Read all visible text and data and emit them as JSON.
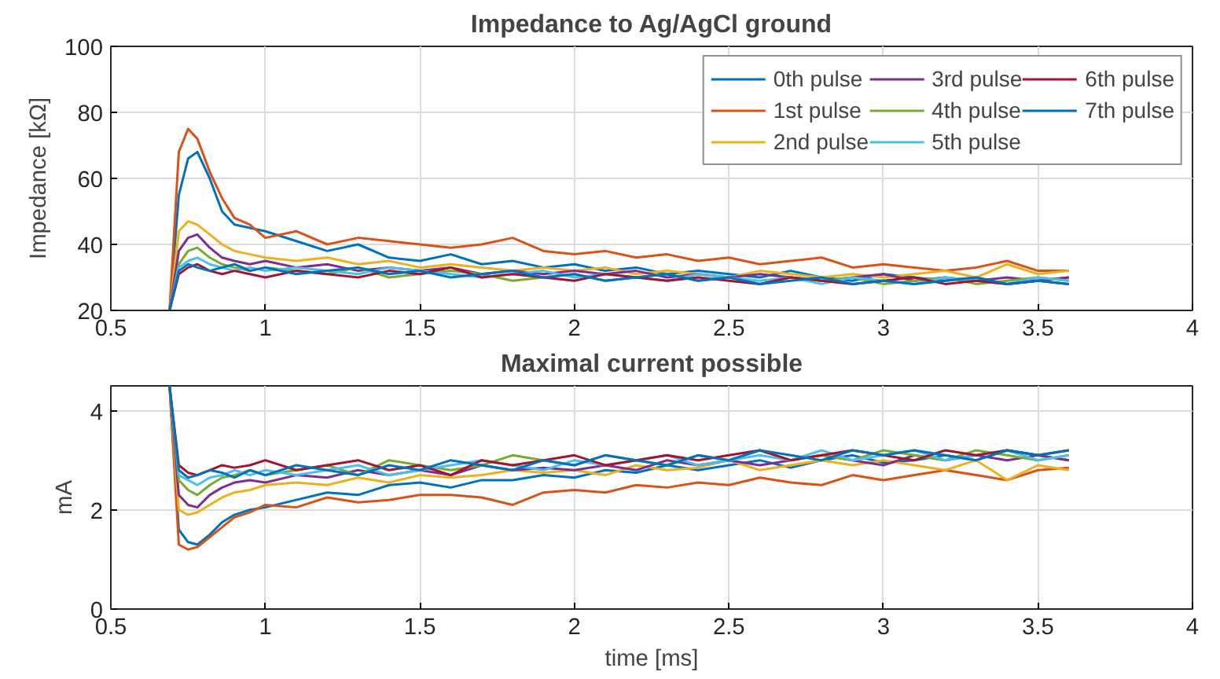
{
  "chart_data": [
    {
      "type": "line",
      "title": "Impedance to Ag/AgCl ground",
      "ylabel": "Impedance [kΩ]",
      "xlim": [
        0.5,
        4
      ],
      "xticks": [
        0.5,
        1,
        1.5,
        2,
        2.5,
        3,
        3.5,
        4
      ],
      "ylim": [
        20,
        100
      ],
      "yticks": [
        20,
        40,
        60,
        80,
        100
      ],
      "grid": true,
      "legend": "top right",
      "line_style": "solid",
      "marker": "none",
      "x": [
        0.69,
        0.72,
        0.75,
        0.78,
        0.82,
        0.86,
        0.9,
        0.95,
        1.0,
        1.1,
        1.2,
        1.3,
        1.4,
        1.5,
        1.6,
        1.7,
        1.8,
        1.9,
        2.0,
        2.1,
        2.2,
        2.3,
        2.4,
        2.5,
        2.6,
        2.7,
        2.8,
        2.9,
        3.0,
        3.1,
        3.2,
        3.3,
        3.4,
        3.5,
        3.6
      ],
      "series": [
        {
          "name": "0th pulse",
          "color": "#0072bd",
          "values": [
            20,
            55,
            66,
            68,
            60,
            50,
            46,
            45,
            44,
            41,
            38,
            40,
            36,
            35,
            37,
            34,
            35,
            33,
            34,
            32,
            33,
            31,
            32,
            31,
            30,
            32,
            30,
            29,
            31,
            30,
            29,
            30,
            28,
            29,
            30
          ]
        },
        {
          "name": "1st pulse",
          "color": "#d95319",
          "values": [
            20,
            68,
            75,
            72,
            62,
            54,
            48,
            46,
            42,
            44,
            40,
            42,
            41,
            40,
            39,
            40,
            42,
            38,
            37,
            38,
            36,
            37,
            35,
            36,
            34,
            35,
            36,
            33,
            34,
            33,
            32,
            33,
            35,
            32,
            32
          ]
        },
        {
          "name": "2nd pulse",
          "color": "#edb120",
          "values": [
            20,
            44,
            47,
            46,
            43,
            40,
            38,
            37,
            36,
            35,
            36,
            34,
            35,
            33,
            34,
            33,
            32,
            33,
            32,
            33,
            31,
            32,
            31,
            30,
            32,
            31,
            30,
            31,
            30,
            31,
            32,
            30,
            34,
            31,
            32
          ]
        },
        {
          "name": "3rd pulse",
          "color": "#7e2f8e",
          "values": [
            20,
            38,
            42,
            43,
            39,
            36,
            35,
            34,
            35,
            33,
            34,
            32,
            33,
            32,
            33,
            31,
            32,
            31,
            32,
            31,
            32,
            30,
            31,
            30,
            31,
            30,
            29,
            30,
            31,
            29,
            30,
            29,
            30,
            29,
            30
          ]
        },
        {
          "name": "4th pulse",
          "color": "#77ac30",
          "values": [
            20,
            34,
            38,
            39,
            36,
            34,
            33,
            32,
            33,
            32,
            31,
            33,
            30,
            31,
            32,
            31,
            29,
            30,
            31,
            29,
            30,
            31,
            29,
            30,
            28,
            30,
            29,
            30,
            28,
            29,
            30,
            28,
            29,
            30,
            29
          ]
        },
        {
          "name": "5th pulse",
          "color": "#4dbeee",
          "values": [
            20,
            33,
            35,
            36,
            34,
            33,
            32,
            33,
            32,
            33,
            32,
            31,
            33,
            32,
            31,
            30,
            31,
            32,
            30,
            31,
            30,
            29,
            31,
            30,
            29,
            30,
            28,
            30,
            29,
            28,
            30,
            29,
            28,
            30,
            29
          ]
        },
        {
          "name": "6th pulse",
          "color": "#a2142f",
          "values": [
            20,
            31,
            33,
            34,
            32,
            31,
            32,
            31,
            30,
            32,
            31,
            30,
            32,
            31,
            33,
            30,
            31,
            30,
            29,
            31,
            30,
            29,
            30,
            29,
            28,
            30,
            29,
            28,
            29,
            30,
            28,
            29,
            28,
            29,
            28
          ]
        },
        {
          "name": "7th pulse",
          "color": "#0072bd",
          "values": [
            20,
            32,
            34,
            33,
            32,
            33,
            34,
            32,
            33,
            31,
            32,
            33,
            31,
            32,
            30,
            31,
            32,
            30,
            31,
            29,
            30,
            31,
            29,
            30,
            28,
            29,
            30,
            28,
            29,
            28,
            29,
            30,
            28,
            29,
            28
          ]
        }
      ]
    },
    {
      "type": "line",
      "title": "Maximal current possible",
      "xlabel": "time [ms]",
      "ylabel": "mA",
      "xlim": [
        0.5,
        4
      ],
      "xticks": [
        0.5,
        1,
        1.5,
        2,
        2.5,
        3,
        3.5,
        4
      ],
      "ylim": [
        0,
        4.5
      ],
      "yticks": [
        0,
        2,
        4
      ],
      "grid": true,
      "line_style": "solid",
      "marker": "none",
      "x": [
        0.69,
        0.72,
        0.75,
        0.78,
        0.82,
        0.86,
        0.9,
        0.95,
        1.0,
        1.1,
        1.2,
        1.3,
        1.4,
        1.5,
        1.6,
        1.7,
        1.8,
        1.9,
        2.0,
        2.1,
        2.2,
        2.3,
        2.4,
        2.5,
        2.6,
        2.7,
        2.8,
        2.9,
        3.0,
        3.1,
        3.2,
        3.3,
        3.4,
        3.5,
        3.6
      ],
      "series": [
        {
          "color": "#0072bd",
          "values": [
            4.5,
            1.6,
            1.35,
            1.3,
            1.5,
            1.75,
            1.9,
            2.0,
            2.05,
            2.2,
            2.35,
            2.3,
            2.5,
            2.55,
            2.45,
            2.6,
            2.6,
            2.7,
            2.65,
            2.8,
            2.75,
            2.9,
            2.8,
            2.9,
            3.0,
            2.85,
            3.0,
            3.1,
            2.95,
            3.0,
            3.1,
            3.0,
            3.2,
            3.1,
            3.0
          ]
        },
        {
          "color": "#d95319",
          "values": [
            4.5,
            1.3,
            1.2,
            1.25,
            1.45,
            1.65,
            1.85,
            1.95,
            2.1,
            2.05,
            2.25,
            2.15,
            2.2,
            2.3,
            2.3,
            2.25,
            2.1,
            2.35,
            2.4,
            2.35,
            2.5,
            2.45,
            2.55,
            2.5,
            2.65,
            2.55,
            2.5,
            2.7,
            2.6,
            2.7,
            2.8,
            2.7,
            2.6,
            2.8,
            2.85
          ]
        },
        {
          "color": "#edb120",
          "values": [
            4.5,
            2.0,
            1.9,
            1.95,
            2.1,
            2.25,
            2.35,
            2.4,
            2.5,
            2.55,
            2.5,
            2.65,
            2.55,
            2.7,
            2.65,
            2.7,
            2.8,
            2.75,
            2.8,
            2.7,
            2.9,
            2.8,
            2.85,
            3.0,
            2.8,
            2.9,
            3.0,
            2.9,
            3.0,
            2.9,
            2.8,
            3.0,
            2.6,
            2.9,
            2.8
          ]
        },
        {
          "color": "#7e2f8e",
          "values": [
            4.5,
            2.3,
            2.1,
            2.05,
            2.3,
            2.45,
            2.55,
            2.6,
            2.55,
            2.7,
            2.65,
            2.8,
            2.7,
            2.8,
            2.7,
            2.9,
            2.8,
            2.85,
            2.8,
            2.9,
            2.8,
            3.0,
            2.9,
            3.0,
            2.9,
            3.0,
            3.1,
            3.0,
            2.9,
            3.1,
            3.0,
            3.1,
            3.0,
            3.1,
            3.0
          ]
        },
        {
          "color": "#77ac30",
          "values": [
            4.5,
            2.6,
            2.4,
            2.3,
            2.5,
            2.65,
            2.7,
            2.8,
            2.7,
            2.8,
            2.9,
            2.7,
            3.0,
            2.9,
            2.8,
            2.9,
            3.1,
            3.0,
            2.9,
            3.1,
            3.0,
            2.9,
            3.1,
            3.0,
            3.2,
            3.0,
            3.1,
            3.0,
            3.2,
            3.1,
            3.0,
            3.2,
            3.1,
            3.0,
            3.1
          ]
        },
        {
          "color": "#4dbeee",
          "values": [
            4.5,
            2.7,
            2.6,
            2.5,
            2.65,
            2.7,
            2.8,
            2.7,
            2.8,
            2.7,
            2.8,
            2.9,
            2.7,
            2.8,
            2.9,
            3.0,
            2.9,
            2.8,
            3.0,
            2.9,
            3.0,
            3.1,
            2.9,
            3.0,
            3.1,
            3.0,
            3.2,
            3.0,
            3.1,
            3.2,
            3.0,
            3.1,
            3.2,
            3.0,
            3.1
          ]
        },
        {
          "color": "#a2142f",
          "values": [
            4.5,
            2.9,
            2.75,
            2.7,
            2.8,
            2.9,
            2.85,
            2.9,
            3.0,
            2.8,
            2.9,
            3.0,
            2.8,
            2.9,
            2.7,
            3.0,
            2.9,
            3.0,
            3.1,
            2.9,
            3.0,
            3.1,
            3.0,
            3.1,
            3.2,
            3.0,
            3.1,
            3.2,
            3.1,
            3.0,
            3.2,
            3.1,
            3.2,
            3.1,
            3.2
          ]
        },
        {
          "color": "#0072bd",
          "values": [
            4.5,
            2.8,
            2.65,
            2.7,
            2.8,
            2.75,
            2.65,
            2.8,
            2.7,
            2.9,
            2.8,
            2.7,
            2.9,
            2.8,
            3.0,
            2.9,
            2.8,
            3.0,
            2.9,
            3.1,
            3.0,
            2.9,
            3.1,
            3.0,
            3.2,
            3.1,
            3.0,
            3.2,
            3.1,
            3.2,
            3.1,
            3.0,
            3.2,
            3.1,
            3.2
          ]
        }
      ]
    }
  ]
}
